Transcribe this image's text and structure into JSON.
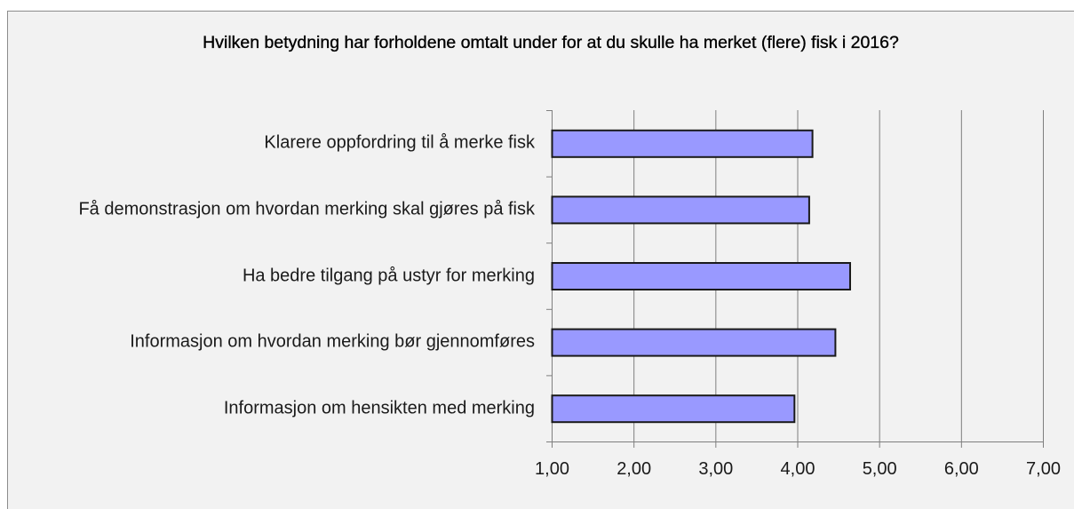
{
  "chart_data": {
    "type": "bar",
    "orientation": "horizontal",
    "title": "Hvilken betydning har forholdene omtalt under for at du skulle ha merket (flere) fisk i 2016?",
    "categories": [
      "Klarere oppfordring til å merke fisk",
      "Få demonstrasjon om hvordan merking skal gjøres på fisk",
      "Ha bedre tilgang på ustyr for merking",
      "Informasjon om hvordan merking bør gjennomføres",
      "Informasjon om hensikten med merking"
    ],
    "values": [
      4.18,
      4.14,
      4.64,
      4.46,
      3.96
    ],
    "xlim": [
      1,
      7
    ],
    "x_ticks": [
      "1,00",
      "2,00",
      "3,00",
      "4,00",
      "5,00",
      "6,00",
      "7,00"
    ],
    "grid": true,
    "legend": "none",
    "colors": {
      "bar_fill": "#9999ff",
      "bar_stroke": "#1a1a1a",
      "gridline": "#7f7f7f",
      "background": "#f2f2f2"
    }
  }
}
